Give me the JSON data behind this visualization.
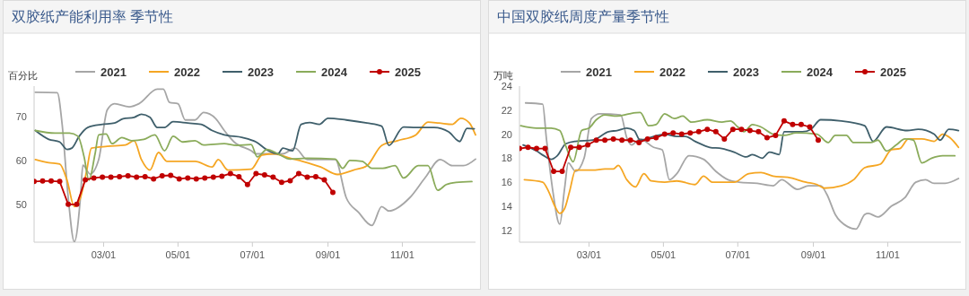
{
  "chart_data": [
    {
      "type": "line",
      "title": "双胶纸产能利用率 季节性",
      "ylabel": "百分比",
      "xlim": [
        "--01-03",
        "--12-31"
      ],
      "xticks": [
        {
          "value": "--03-01",
          "label": "03/01"
        },
        {
          "value": "--05-01",
          "label": "05/01"
        },
        {
          "value": "--07-01",
          "label": "07/01"
        },
        {
          "value": "--09-01",
          "label": "09/01"
        },
        {
          "value": "--11-01",
          "label": "11/01"
        }
      ],
      "ylim": [
        41.5,
        77
      ],
      "yticks": [
        50,
        60,
        70
      ],
      "grid": false,
      "legend": "top",
      "line_style": "solid",
      "series": [
        {
          "name": "2021",
          "color": "#a6a6a6",
          "marker": "none",
          "x": [
            "--01-04",
            "--01-22",
            "--01-26",
            "--01-31",
            "--02-05",
            "--02-10",
            "--02-12",
            "--02-18",
            "--02-25",
            "--03-04",
            "--03-10",
            "--03-22",
            "--03-30",
            "--04-14",
            "--04-19",
            "--04-24",
            "--05-01",
            "--05-07",
            "--05-15",
            "--05-22",
            "--06-01",
            "--06-08",
            "--06-16",
            "--06-30",
            "--07-04",
            "--07-26",
            "--08-05",
            "--08-15",
            "--09-07",
            "--09-16",
            "--09-26",
            "--10-07",
            "--10-15",
            "--10-21",
            "--11-07",
            "--11-20",
            "--12-02",
            "--12-12",
            "--12-21",
            "--12-31"
          ],
          "values": [
            75.6,
            75.5,
            68.3,
            51.6,
            41.6,
            51.6,
            59,
            57,
            60.3,
            71.6,
            73,
            72.3,
            73,
            76.3,
            76.3,
            73.3,
            73,
            69.3,
            69.3,
            71,
            69.6,
            66.9,
            64.3,
            62.3,
            61.6,
            61.6,
            62.9,
            60.3,
            60.3,
            51.6,
            48.3,
            45.3,
            49.6,
            48.6,
            51.6,
            56.3,
            60.3,
            58.9,
            58.9,
            60.4
          ]
        },
        {
          "name": "2022",
          "color": "#f5a623",
          "marker": "none",
          "x": [
            "--01-04",
            "--01-15",
            "--01-24",
            "--01-30",
            "--02-05",
            "--02-10",
            "--02-15",
            "--02-19",
            "--03-04",
            "--03-19",
            "--03-26",
            "--04-01",
            "--04-08",
            "--04-15",
            "--04-22",
            "--05-05",
            "--05-15",
            "--05-29",
            "--06-03",
            "--06-11",
            "--06-30",
            "--07-09",
            "--07-19",
            "--08-01",
            "--08-11",
            "--08-26",
            "--09-09",
            "--09-22",
            "--10-03",
            "--10-15",
            "--10-28",
            "--11-12",
            "--11-22",
            "--12-01",
            "--12-12",
            "--12-19",
            "--12-26",
            "--12-31"
          ],
          "values": [
            60.3,
            59.6,
            59.3,
            55.6,
            49.6,
            51.6,
            57.6,
            62.9,
            63.3,
            63.6,
            64.6,
            60.3,
            57.9,
            61.9,
            59.9,
            59.9,
            59.9,
            58.6,
            60.3,
            57.9,
            58.1,
            61.3,
            61.6,
            60.6,
            59.9,
            58.6,
            56.9,
            57.9,
            58.9,
            63.5,
            64.6,
            65.9,
            68.8,
            68.6,
            68.3,
            69.7,
            68.6,
            65.9
          ]
        },
        {
          "name": "2023",
          "color": "#3f5f6b",
          "marker": "none",
          "x": [
            "--01-04",
            "--01-15",
            "--01-24",
            "--01-30",
            "--02-03",
            "--02-09",
            "--02-16",
            "--02-28",
            "--03-10",
            "--03-17",
            "--03-26",
            "--04-01",
            "--04-08",
            "--04-14",
            "--04-20",
            "--04-27",
            "--05-09",
            "--05-20",
            "--05-29",
            "--06-08",
            "--06-23",
            "--07-04",
            "--07-14",
            "--07-22",
            "--07-26",
            "--08-03",
            "--08-10",
            "--08-17",
            "--08-25",
            "--09-01",
            "--09-16",
            "--10-03",
            "--10-15",
            "--10-21",
            "--11-02",
            "--11-12",
            "--11-27",
            "--12-09",
            "--12-18",
            "--12-24",
            "--12-30"
          ],
          "values": [
            66.9,
            64.9,
            64.3,
            62.6,
            62.9,
            65.6,
            67.6,
            68.3,
            68.6,
            69.6,
            69.9,
            70.6,
            69.9,
            67.6,
            67.6,
            68.9,
            68.6,
            68.3,
            66.9,
            65.9,
            65.3,
            64.3,
            62.3,
            61.6,
            62.9,
            62.3,
            68.3,
            68.7,
            68.3,
            69.7,
            69.3,
            68.6,
            67.9,
            63.5,
            67.7,
            67.6,
            67.6,
            66.6,
            64.4,
            67.4,
            67.3
          ]
        },
        {
          "name": "2024",
          "color": "#8aab5a",
          "marker": "none",
          "x": [
            "--01-04",
            "--01-20",
            "--02-01",
            "--02-08",
            "--02-13",
            "--02-17",
            "--02-22",
            "--02-25",
            "--03-03",
            "--03-08",
            "--03-16",
            "--03-24",
            "--04-03",
            "--04-12",
            "--04-20",
            "--04-27",
            "--05-05",
            "--05-15",
            "--05-22",
            "--06-08",
            "--06-18",
            "--06-30",
            "--07-05",
            "--07-13",
            "--07-22",
            "--08-01",
            "--08-15",
            "--09-07",
            "--09-13",
            "--09-19",
            "--09-29",
            "--10-07",
            "--10-16",
            "--10-26",
            "--11-02",
            "--11-14",
            "--11-22",
            "--11-30",
            "--12-07",
            "--12-15",
            "--12-28"
          ],
          "values": [
            66.9,
            66.3,
            66.3,
            65.6,
            60.9,
            55.6,
            61.6,
            65.9,
            66.1,
            63.9,
            65.3,
            64.6,
            64.9,
            65.9,
            62.3,
            65.6,
            64.3,
            64.6,
            63.6,
            63.9,
            63.5,
            63.7,
            60.9,
            62.6,
            61.6,
            60.4,
            60.6,
            60.4,
            58.3,
            60.1,
            59.9,
            58.3,
            58.3,
            58.9,
            56.1,
            58.9,
            58.9,
            53.3,
            54.6,
            55.1,
            55.3
          ]
        },
        {
          "name": "2025",
          "color": "#c00000",
          "marker": "circle",
          "x": [
            "--01-03",
            "--01-10",
            "--01-17",
            "--01-24",
            "--01-31",
            "--02-07",
            "--02-14",
            "--02-21",
            "--02-28",
            "--03-07",
            "--03-14",
            "--03-21",
            "--03-28",
            "--04-04",
            "--04-11",
            "--04-18",
            "--04-25",
            "--05-02",
            "--05-09",
            "--05-16",
            "--05-23",
            "--05-30",
            "--06-06",
            "--06-13",
            "--06-20",
            "--06-27",
            "--07-04",
            "--07-11",
            "--07-18",
            "--07-25",
            "--08-01",
            "--08-08",
            "--08-15",
            "--08-22",
            "--08-29",
            "--09-05"
          ],
          "values": [
            55.3,
            55.4,
            55.4,
            55.3,
            50.1,
            50.1,
            55.7,
            56.1,
            56.3,
            56.3,
            56.4,
            56.6,
            56.3,
            56.4,
            55.9,
            56.6,
            56.7,
            55.9,
            56.1,
            55.9,
            56.1,
            56.3,
            56.5,
            57.1,
            56.4,
            54.6,
            57.1,
            56.8,
            56.3,
            55.1,
            55.5,
            57.1,
            56.3,
            56.4,
            55.7,
            52.8
          ]
        }
      ]
    },
    {
      "type": "line",
      "title": "中国双胶纸周度产量季节性",
      "ylabel": "万吨",
      "xlim": [
        "--01-03",
        "--12-31"
      ],
      "xticks": [
        {
          "value": "--03-01",
          "label": "03/01"
        },
        {
          "value": "--05-01",
          "label": "05/01"
        },
        {
          "value": "--07-01",
          "label": "07/01"
        },
        {
          "value": "--09-01",
          "label": "09/01"
        },
        {
          "value": "--11-01",
          "label": "11/01"
        }
      ],
      "ylim": [
        11,
        24
      ],
      "yticks": [
        12,
        14,
        16,
        18,
        20,
        22,
        24
      ],
      "grid": false,
      "legend": "top",
      "line_style": "solid",
      "series": [
        {
          "name": "2021",
          "color": "#a6a6a6",
          "marker": "none",
          "x": [
            "--01-08",
            "--01-22",
            "--01-25",
            "--01-30",
            "--02-05",
            "--02-09",
            "--02-12",
            "--02-18",
            "--02-25",
            "--03-03",
            "--03-10",
            "--03-27",
            "--04-01",
            "--04-05",
            "--04-12",
            "--04-23",
            "--04-30",
            "--05-06",
            "--05-12",
            "--05-22",
            "--06-03",
            "--06-13",
            "--06-23",
            "--07-02",
            "--07-17",
            "--07-30",
            "--08-06",
            "--08-19",
            "--08-28",
            "--09-07",
            "--09-12",
            "--09-19",
            "--09-29",
            "--10-06",
            "--10-13",
            "--10-16",
            "--10-24",
            "--11-04",
            "--11-15",
            "--11-24",
            "--12-02",
            "--12-09",
            "--12-18",
            "--12-29"
          ],
          "values": [
            22.6,
            22.5,
            19.7,
            15.5,
            12.5,
            15.5,
            17.6,
            16.9,
            18,
            21.3,
            21.7,
            21.6,
            19.7,
            19.1,
            19.6,
            18.9,
            18.7,
            16.2,
            16.7,
            18.2,
            17.9,
            16.9,
            16.2,
            16,
            15.9,
            15.7,
            16.2,
            15.4,
            15.7,
            15.7,
            15,
            13.3,
            12.3,
            12.1,
            13.3,
            13.4,
            13.1,
            14,
            14.7,
            16,
            16.2,
            15.9,
            15.9,
            16.3
          ]
        },
        {
          "name": "2022",
          "color": "#f5a623",
          "marker": "none",
          "x": [
            "--01-07",
            "--01-22",
            "--01-27",
            "--02-01",
            "--02-05",
            "--02-09",
            "--02-13",
            "--02-18",
            "--03-04",
            "--03-14",
            "--03-21",
            "--03-25",
            "--04-01",
            "--04-08",
            "--04-15",
            "--04-21",
            "--05-02",
            "--05-12",
            "--05-27",
            "--06-03",
            "--06-10",
            "--06-28",
            "--07-10",
            "--07-20",
            "--07-30",
            "--08-11",
            "--08-26",
            "--09-04",
            "--09-10",
            "--09-24",
            "--10-04",
            "--10-13",
            "--10-26",
            "--11-04",
            "--11-11",
            "--11-18",
            "--11-29",
            "--12-09",
            "--12-16",
            "--12-22",
            "--12-29"
          ],
          "values": [
            16.2,
            16,
            15.2,
            14,
            13.4,
            13.8,
            15.2,
            17,
            17,
            17.1,
            17.1,
            17.4,
            16.2,
            15.6,
            16.7,
            16.1,
            16,
            16.1,
            15.8,
            16.5,
            16,
            16,
            16.7,
            16.8,
            16.5,
            16.4,
            16,
            15.8,
            15.5,
            15.7,
            16.2,
            17.2,
            17.5,
            18.7,
            18.8,
            19.6,
            19.6,
            19.4,
            20,
            19.7,
            18.9
          ]
        },
        {
          "name": "2023",
          "color": "#3f5f6b",
          "marker": "none",
          "x": [
            "--01-06",
            "--01-17",
            "--01-23",
            "--01-29",
            "--02-03",
            "--02-10",
            "--02-18",
            "--03-04",
            "--03-17",
            "--03-24",
            "--04-01",
            "--04-07",
            "--04-12",
            "--04-23",
            "--05-02",
            "--05-12",
            "--05-19",
            "--05-27",
            "--06-08",
            "--06-18",
            "--06-28",
            "--07-08",
            "--07-13",
            "--07-21",
            "--07-27",
            "--08-04",
            "--08-08",
            "--08-23",
            "--08-30",
            "--09-07",
            "--09-24",
            "--10-13",
            "--10-20",
            "--10-31",
            "--11-17",
            "--11-26",
            "--12-09",
            "--12-14",
            "--12-21",
            "--12-29"
          ],
          "values": [
            19.1,
            18.6,
            18.2,
            17.9,
            18.2,
            19.2,
            19.4,
            19.5,
            20.2,
            20.3,
            20.5,
            20.3,
            19.5,
            19.8,
            20,
            19.8,
            19.8,
            19.4,
            18.9,
            18.8,
            18.5,
            18.1,
            18.3,
            18,
            18.5,
            18.3,
            20.2,
            20.2,
            20.4,
            21.2,
            21.1,
            20.7,
            19.4,
            20.6,
            20.3,
            20.4,
            20,
            19.5,
            20.4,
            20.3
          ]
        },
        {
          "name": "2024",
          "color": "#8aab5a",
          "marker": "none",
          "x": [
            "--01-04",
            "--01-17",
            "--01-29",
            "--02-05",
            "--02-10",
            "--02-16",
            "--02-23",
            "--03-01",
            "--03-07",
            "--03-14",
            "--03-24",
            "--04-03",
            "--04-12",
            "--04-19",
            "--04-25",
            "--05-02",
            "--05-10",
            "--05-17",
            "--05-24",
            "--06-06",
            "--06-18",
            "--06-25",
            "--07-01",
            "--07-06",
            "--07-13",
            "--07-20",
            "--07-30",
            "--08-08",
            "--08-18",
            "--09-04",
            "--09-13",
            "--09-19",
            "--09-28",
            "--10-04",
            "--10-18",
            "--10-24",
            "--10-31",
            "--11-08",
            "--11-15",
            "--11-22",
            "--11-29",
            "--12-07",
            "--12-16",
            "--12-26"
          ],
          "values": [
            20.7,
            20.5,
            20.5,
            20.3,
            19,
            17.7,
            20.3,
            20.5,
            21.2,
            21.6,
            21.5,
            21.7,
            21.8,
            20.7,
            20.8,
            21.7,
            21.3,
            21.5,
            21,
            21.2,
            21,
            21.1,
            20.6,
            20.2,
            20.8,
            20.6,
            20,
            19.9,
            20.1,
            20,
            19.3,
            19.9,
            19.9,
            19.3,
            19.3,
            19.5,
            18.6,
            19.1,
            19.6,
            19.5,
            17.6,
            18,
            18.2,
            18.2
          ]
        },
        {
          "name": "2025",
          "color": "#c00000",
          "marker": "circle",
          "x": [
            "--01-03",
            "--01-10",
            "--01-17",
            "--01-24",
            "--01-31",
            "--02-07",
            "--02-14",
            "--02-21",
            "--02-28",
            "--03-07",
            "--03-14",
            "--03-21",
            "--03-28",
            "--04-04",
            "--04-11",
            "--04-18",
            "--04-25",
            "--05-02",
            "--05-09",
            "--05-16",
            "--05-23",
            "--05-30",
            "--06-06",
            "--06-13",
            "--06-20",
            "--06-27",
            "--07-04",
            "--07-11",
            "--07-18",
            "--07-25",
            "--08-01",
            "--08-08",
            "--08-15",
            "--08-22",
            "--08-29",
            "--09-05"
          ],
          "values": [
            18.8,
            18.9,
            18.8,
            18.8,
            16.9,
            16.9,
            18.9,
            18.9,
            19.1,
            19.5,
            19.5,
            19.6,
            19.5,
            19.5,
            19.3,
            19.6,
            19.7,
            20,
            20.1,
            20,
            20.1,
            20.2,
            20.4,
            20.2,
            19.6,
            20.4,
            20.4,
            20.3,
            20.2,
            19.7,
            19.9,
            21.1,
            20.8,
            20.8,
            20.6,
            19.5
          ]
        }
      ]
    }
  ]
}
